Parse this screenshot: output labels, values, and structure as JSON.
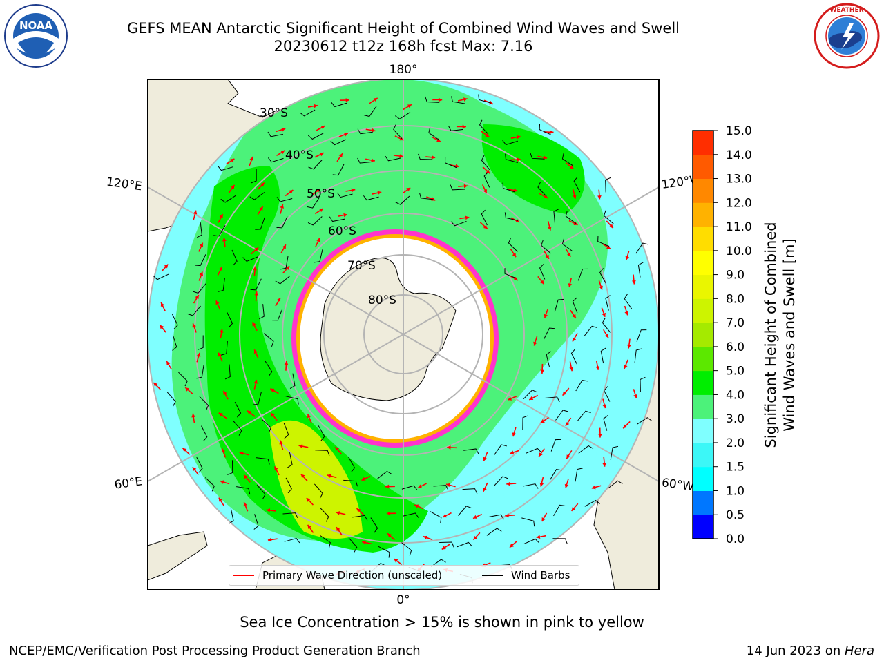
{
  "header": {
    "title_line1": "GEFS MEAN Antarctic Significant Height of Combined Wind Waves and Swell",
    "title_line2": "20230612 t12z 168h fcst   Max: 7.16"
  },
  "logos": {
    "left": {
      "name": "noaa-logo",
      "text": "NOAA",
      "ring_text": "NATIONAL OCEANIC AND ATMOSPHERIC ADMINISTRATION · U.S. DEPARTMENT OF COMMERCE"
    },
    "right": {
      "name": "nws-logo",
      "ring_text": "NATIONAL WEATHER SERVICE"
    }
  },
  "map": {
    "projection": "south-polar-stereographic",
    "meridian_labels": {
      "top": "180°",
      "bottom": "0°",
      "upper_left": "120°E",
      "lower_left": "60°E",
      "upper_right": "120°W",
      "lower_right": "60°W"
    },
    "latitude_labels": [
      "30°S",
      "40°S",
      "50°S",
      "60°S",
      "70°S",
      "80°S"
    ],
    "colors": {
      "ocean_low": "#7fffff",
      "ocean_mid": "#4cf27a",
      "ocean_high": "#00ee00",
      "land": "#efecdc",
      "ice_edge": "#ff33cc",
      "gridline": "#b4b4b4"
    }
  },
  "legend": {
    "wave_label": "Primary Wave Direction (unscaled)",
    "wave_color": "#ff0000",
    "wind_label": "Wind Barbs",
    "wind_color": "#000000"
  },
  "colorbar": {
    "label_line1": "Significant Height of Combined",
    "label_line2": "Wind Waves and Swell [m]",
    "ticks": [
      "0.0",
      "0.5",
      "1.0",
      "1.5",
      "2.0",
      "3.0",
      "4.0",
      "5.0",
      "6.0",
      "7.0",
      "8.0",
      "9.0",
      "10.0",
      "11.0",
      "12.0",
      "13.0",
      "14.0",
      "15.0"
    ],
    "colors": [
      "#0000ff",
      "#0077ff",
      "#00ffff",
      "#3cf7f7",
      "#7fffff",
      "#4cf27a",
      "#00ee00",
      "#5ce800",
      "#a5ea00",
      "#cdf400",
      "#eaf600",
      "#ffff00",
      "#ffdd00",
      "#ffb200",
      "#ff8800",
      "#ff5a00",
      "#ff2e00",
      "#ff0000"
    ]
  },
  "footer": {
    "subtitle": "Sea Ice Concentration > 15% is shown in pink to yellow",
    "left_text": "NCEP/EMC/Verification Post Processing Product Generation Branch",
    "right_prefix": "14 Jun 2023 on ",
    "right_machine": "Hera"
  }
}
